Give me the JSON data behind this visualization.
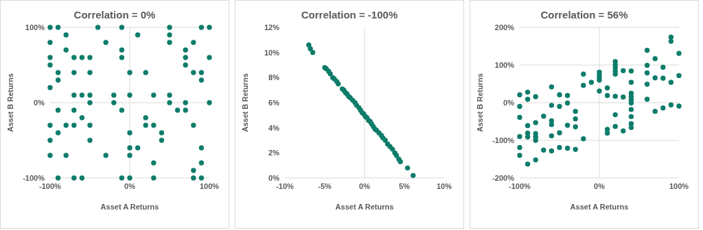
{
  "chart_data": [
    {
      "type": "scatter",
      "title": "Correlation = 0%",
      "xlabel": "Asset A Returns",
      "ylabel": "Asset B Returns",
      "xlim": [
        -100,
        100
      ],
      "ylim": [
        -100,
        100
      ],
      "xticks": [
        {
          "value": -100,
          "label": "-100%"
        },
        {
          "value": 0,
          "label": "0%"
        },
        {
          "value": 100,
          "label": "100%"
        }
      ],
      "yticks": [
        {
          "value": -100,
          "label": "-100%"
        },
        {
          "value": 0,
          "label": "0%"
        },
        {
          "value": 100,
          "label": "100%"
        }
      ],
      "grid": "y",
      "marker": "circle",
      "ref_lines": [
        {
          "axis": "x",
          "value": 0,
          "color": "#d9d9d9"
        }
      ],
      "series": [
        {
          "color": "#0e7c6b",
          "x": [
            -100,
            -90,
            -40,
            -10,
            50,
            90,
            100,
            -80,
            10,
            50,
            -100,
            -30,
            50,
            80,
            -80,
            -10,
            70,
            -100,
            -70,
            -60,
            -50,
            -10,
            70,
            100,
            -100,
            70,
            -90,
            -70,
            -50,
            0,
            20,
            80,
            90,
            -90,
            90,
            -100,
            -70,
            -60,
            -50,
            -20,
            0,
            30,
            50,
            -50,
            -20,
            50,
            70,
            100,
            -90,
            -70,
            -10,
            60,
            70,
            -60,
            20,
            -100,
            -80,
            -70,
            -50,
            20,
            30,
            80,
            -90,
            0,
            40,
            -100,
            -50,
            40,
            0,
            10,
            90,
            -100,
            -80,
            -30,
            0,
            30,
            90,
            80,
            -90,
            -70,
            -60,
            -10,
            0,
            30,
            80,
            90
          ],
          "values": [
            100,
            100,
            100,
            100,
            100,
            100,
            100,
            90,
            90,
            90,
            80,
            80,
            80,
            80,
            70,
            70,
            70,
            60,
            60,
            60,
            60,
            60,
            60,
            60,
            50,
            50,
            40,
            40,
            40,
            40,
            40,
            40,
            40,
            30,
            30,
            20,
            10,
            10,
            10,
            10,
            10,
            10,
            10,
            0,
            0,
            0,
            0,
            0,
            -10,
            -10,
            -10,
            -10,
            -10,
            -20,
            -20,
            -30,
            -30,
            -30,
            -30,
            -30,
            -30,
            -30,
            -40,
            -40,
            -40,
            -50,
            -50,
            -50,
            -60,
            -60,
            -60,
            -70,
            -70,
            -70,
            -70,
            -80,
            -80,
            -90,
            -100,
            -100,
            -100,
            -100,
            -100,
            -100,
            -100,
            -100
          ]
        }
      ]
    },
    {
      "type": "scatter",
      "title": "Correlation = -100%",
      "xlabel": "Asset A Returns",
      "ylabel": "Asset B Returns",
      "xlim": [
        -10,
        10
      ],
      "ylim": [
        0,
        12
      ],
      "xticks": [
        {
          "value": -10,
          "label": "-10%"
        },
        {
          "value": -5,
          "label": "-5%"
        },
        {
          "value": 0,
          "label": "0%"
        },
        {
          "value": 5,
          "label": "5%"
        },
        {
          "value": 10,
          "label": "10%"
        }
      ],
      "yticks": [
        {
          "value": 0,
          "label": "0%"
        },
        {
          "value": 2,
          "label": "2%"
        },
        {
          "value": 4,
          "label": "4%"
        },
        {
          "value": 6,
          "label": "6%"
        },
        {
          "value": 8,
          "label": "8%"
        },
        {
          "value": 10,
          "label": "10%"
        },
        {
          "value": 12,
          "label": "12%"
        }
      ],
      "marker": "circle",
      "ref_lines": [
        {
          "axis": "x",
          "value": 0,
          "color": "#d9d9d9"
        }
      ],
      "series": [
        {
          "color": "#0e7c6b",
          "x": [
            -7.0,
            -6.8,
            -6.5,
            -5.0,
            -4.8,
            -4.5,
            -4.3,
            -4.0,
            -3.8,
            -3.5,
            -3.3,
            -2.8,
            -2.6,
            -2.4,
            -2.2,
            -2.0,
            -1.8,
            -1.5,
            -1.2,
            -1.0,
            -0.7,
            -0.5,
            -0.3,
            -0.1,
            0.1,
            0.3,
            0.5,
            0.7,
            0.9,
            1.1,
            1.3,
            1.5,
            1.8,
            2.1,
            2.3,
            2.6,
            2.9,
            3.2,
            3.5,
            3.8,
            4.0,
            4.3,
            4.5,
            5.4,
            6.1
          ],
          "values": [
            10.6,
            10.3,
            10.0,
            8.8,
            8.7,
            8.5,
            8.3,
            8.0,
            7.9,
            7.7,
            7.5,
            7.1,
            7.0,
            6.8,
            6.7,
            6.5,
            6.4,
            6.2,
            6.0,
            5.8,
            5.6,
            5.4,
            5.2,
            5.1,
            4.9,
            4.8,
            4.6,
            4.5,
            4.3,
            4.1,
            3.9,
            3.8,
            3.6,
            3.4,
            3.2,
            3.0,
            2.7,
            2.5,
            2.3,
            2.0,
            1.8,
            1.5,
            1.3,
            0.8,
            0.2
          ]
        }
      ]
    },
    {
      "type": "scatter",
      "title": "Correlation = 56%",
      "xlabel": "Asset A Returns",
      "ylabel": "Asset B Returns",
      "xlim": [
        -100,
        100
      ],
      "ylim": [
        -200,
        200
      ],
      "xticks": [
        {
          "value": -100,
          "label": "-100%"
        },
        {
          "value": 0,
          "label": "0%"
        },
        {
          "value": 100,
          "label": "100%"
        }
      ],
      "yticks": [
        {
          "value": -200,
          "label": "-200%"
        },
        {
          "value": -100,
          "label": "-100%"
        },
        {
          "value": 0,
          "label": "0%"
        },
        {
          "value": 100,
          "label": "100%"
        },
        {
          "value": 200,
          "label": "200%"
        }
      ],
      "grid": "y",
      "marker": "circle",
      "ref_lines": [
        {
          "axis": "x",
          "value": 0,
          "color": "#d9d9d9"
        }
      ],
      "series": [
        {
          "color": "#0e7c6b",
          "x": [
            -100,
            -100,
            -100,
            -100,
            -100,
            -100,
            -90,
            -90,
            -90,
            -90,
            -90,
            -90,
            -80,
            -80,
            -80,
            -80,
            -80,
            -80,
            -70,
            -70,
            -60,
            -60,
            -60,
            -60,
            -60,
            -60,
            -50,
            -50,
            -50,
            -50,
            -40,
            -40,
            -40,
            -40,
            -30,
            -30,
            -30,
            -30,
            -20,
            -20,
            -20,
            -10,
            0,
            0,
            0,
            0,
            0,
            10,
            10,
            10,
            10,
            20,
            20,
            20,
            20,
            20,
            20,
            20,
            20,
            30,
            30,
            30,
            40,
            40,
            40,
            40,
            40,
            40,
            40,
            40,
            40,
            40,
            60,
            60,
            60,
            60,
            60,
            70,
            70,
            70,
            80,
            80,
            80,
            90,
            90,
            90,
            90,
            100,
            100,
            100
          ],
          "values": [
            21,
            -10,
            -39,
            -90,
            -119,
            -140,
            28,
            9,
            -61,
            -81,
            -91,
            -163,
            16,
            -53,
            -82,
            -91,
            -100,
            -152,
            -36,
            -126,
            42,
            -7,
            -48,
            -58,
            -88,
            -128,
            21,
            -10,
            -80,
            -119,
            19,
            -1,
            -60,
            -121,
            -23,
            -43,
            -64,
            -124,
            76,
            46,
            -96,
            54,
            81,
            73,
            67,
            60,
            31,
            39,
            19,
            -71,
            -81,
            109,
            101,
            93,
            84,
            76,
            17,
            -32,
            -63,
            85,
            15,
            -75,
            84,
            54,
            25,
            16,
            7,
            -1,
            -18,
            -37,
            -56,
            -66,
            139,
            99,
            79,
            49,
            9,
            117,
            66,
            -23,
            94,
            65,
            -14,
            174,
            163,
            54,
            -6,
            131,
            72,
            -9
          ]
        }
      ]
    }
  ]
}
